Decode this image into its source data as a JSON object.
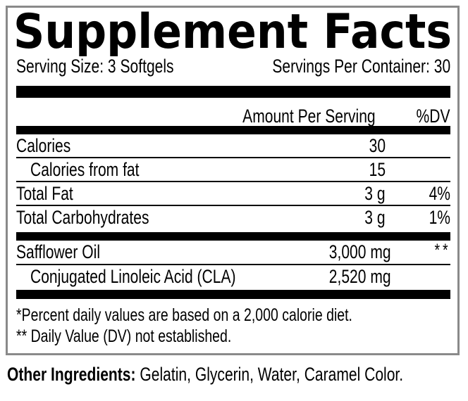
{
  "panel": {
    "title": "Supplement Facts",
    "serving_size": "Serving Size: 3 Softgels",
    "servings_per_container": "Servings Per Container: 30",
    "column_headers": {
      "amount": "Amount Per Serving",
      "dv": "%DV"
    },
    "nutrient_rows": [
      {
        "name": "Calories",
        "amount": "30",
        "dv": "",
        "indent": false
      },
      {
        "name": "Calories from fat",
        "amount": "15",
        "dv": "",
        "indent": true
      },
      {
        "name": "Total Fat",
        "amount": "3 g",
        "dv": "4%",
        "indent": false
      },
      {
        "name": "Total Carbohydrates",
        "amount": "3 g",
        "dv": "1%",
        "indent": false
      }
    ],
    "ingredient_rows": [
      {
        "name": "Safflower Oil",
        "amount": "3,000 mg",
        "dv": "**",
        "indent": false
      },
      {
        "name": "Conjugated Linoleic Acid (CLA)",
        "amount": "2,520 mg",
        "dv": "",
        "indent": true
      }
    ],
    "footnotes": [
      "*Percent daily values are based on a 2,000 calorie diet.",
      "** Daily Value (DV) not established."
    ],
    "other_ingredients_label": "Other Ingredients:",
    "other_ingredients_value": " Gelatin, Glycerin, Water, Caramel Color."
  },
  "colors": {
    "border": "#8a8a8a",
    "bar": "#000000",
    "text": "#000000",
    "background": "#ffffff"
  }
}
